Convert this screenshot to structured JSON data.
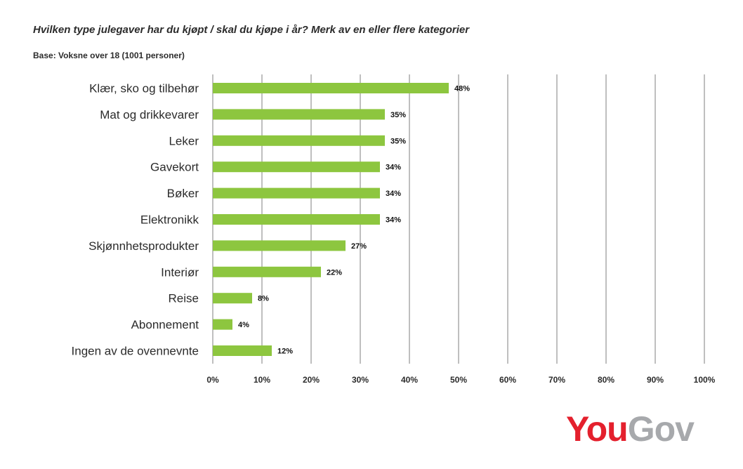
{
  "title": "Hvilken type julegaver har du kjøpt / skal du kjøpe i år? Merk av en eller flere kategorier",
  "subtitle": "Base: Voksne over 18 (1001 personer)",
  "logo": {
    "part1": "You",
    "part2": "Gov",
    "color1": "#e4202d",
    "color2": "#a7a9ac"
  },
  "chart_data": {
    "type": "bar",
    "orientation": "horizontal",
    "title": "Hvilken type julegaver har du kjøpt / skal du kjøpe i år? Merk av en eller flere kategorier",
    "subtitle": "Base: Voksne over 18 (1001 personer)",
    "categories": [
      "Klær, sko og tilbehør",
      "Mat og drikkevarer",
      "Leker",
      "Gavekort",
      "Bøker",
      "Elektronikk",
      "Skjønnhetsprodukter",
      "Interiør",
      "Reise",
      "Abonnement",
      "Ingen av de ovennevnte"
    ],
    "values": [
      48,
      35,
      35,
      34,
      34,
      34,
      27,
      22,
      8,
      4,
      12
    ],
    "data_labels": [
      "48%",
      "35%",
      "35%",
      "34%",
      "34%",
      "34%",
      "27%",
      "22%",
      "8%",
      "4%",
      "12%"
    ],
    "xlim": [
      0,
      100
    ],
    "xticks": [
      "0%",
      "10%",
      "20%",
      "30%",
      "40%",
      "50%",
      "60%",
      "70%",
      "80%",
      "90%",
      "100%"
    ],
    "grid": "vertical",
    "bar_color": "#8dc63f",
    "legend": "none"
  }
}
